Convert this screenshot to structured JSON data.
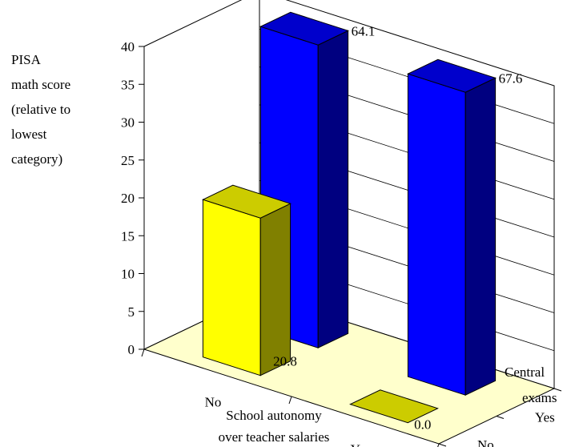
{
  "chart_data": {
    "type": "bar3d",
    "title": "",
    "ylabel_lines": [
      "PISA",
      "math score",
      "(relative to",
      "lowest",
      "category)"
    ],
    "xlabel_lines": [
      "School autonomy",
      "over teacher salaries"
    ],
    "zlabel_lines": [
      "Central",
      "exams"
    ],
    "x_categories": [
      "No",
      "Yes"
    ],
    "z_categories": [
      "No",
      "Yes"
    ],
    "y_ticks": [
      "0",
      "5",
      "10",
      "15",
      "20",
      "25",
      "30",
      "35",
      "40"
    ],
    "ylim": [
      0,
      40
    ],
    "grid": true,
    "bars": [
      {
        "x": "No",
        "z": "No",
        "value": 20.8,
        "label": "20.8",
        "color": "yellow"
      },
      {
        "x": "Yes",
        "z": "No",
        "value": 0.0,
        "label": "0.0",
        "color": "yellow"
      },
      {
        "x": "No",
        "z": "Yes",
        "value": 64.1,
        "label": "64.1",
        "color": "blue"
      },
      {
        "x": "Yes",
        "z": "Yes",
        "value": 67.6,
        "label": "67.6",
        "color": "blue"
      }
    ],
    "colors": {
      "yellow_front": "#ffff00",
      "yellow_top": "#cccc00",
      "yellow_side": "#808000",
      "blue_front": "#0000ff",
      "blue_top": "#0000cc",
      "blue_side": "#000080",
      "floor": "#ffffcc",
      "grid": "#000000"
    }
  }
}
